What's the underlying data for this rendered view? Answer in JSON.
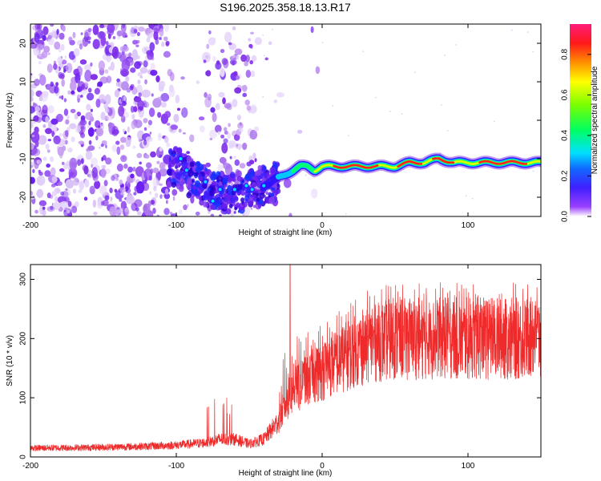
{
  "figure": {
    "title": "S196.2025.358.18.13.R17"
  },
  "colors": {
    "snr_line": "#ee2a2a",
    "scatter_noise": "#8a2be2",
    "frame": "#000000"
  },
  "chart_data": [
    {
      "id": "spectrogram",
      "type": "heatmap",
      "title": "S196.2025.358.18.13.R17",
      "xlabel": "Height of straight line (km)",
      "ylabel": "Frequency (Hz)",
      "xlim": [
        -200,
        150
      ],
      "ylim": [
        -25,
        25
      ],
      "x_ticks": [
        -200,
        -100,
        0,
        100
      ],
      "y_ticks": [
        -20,
        -10,
        0,
        10,
        20
      ],
      "colorbar": {
        "label": "Normalized spectral amplitude",
        "range": [
          0.0,
          0.95
        ],
        "ticks": [
          0.0,
          0.2,
          0.4,
          0.6,
          0.8
        ],
        "tick_labels": [
          "0.0",
          "0.2",
          "0.4",
          "0.6",
          "0.8"
        ],
        "colormap": "rainbow"
      },
      "trace": {
        "description_points_x": [
          -100,
          -90,
          -80,
          -70,
          -60,
          -50,
          -40,
          -35,
          -30,
          -25,
          -20,
          -15,
          -10,
          -5,
          0,
          10,
          20,
          30,
          40,
          50,
          60,
          70,
          80,
          90,
          100,
          110,
          120,
          130,
          140,
          150
        ],
        "description_points_y": [
          -12,
          -15,
          -17,
          -19,
          -19,
          -18,
          -17,
          -16,
          -15,
          -14,
          -13,
          -12,
          -12,
          -13,
          -12,
          -12,
          -12,
          -12,
          -12,
          -12,
          -11,
          -11,
          -10,
          -11,
          -11,
          -11,
          -11,
          -11,
          -11,
          -11
        ]
      }
    },
    {
      "id": "snr",
      "type": "line",
      "xlabel": "Height of straight line (km)",
      "ylabel": "SNR (10 * v/v)",
      "xlim": [
        -200,
        150
      ],
      "ylim": [
        0,
        325
      ],
      "x_ticks": [
        -200,
        -100,
        0,
        100
      ],
      "y_ticks": [
        0,
        100,
        200,
        300
      ],
      "series": [
        {
          "name": "SNR",
          "color": "#ee2a2a",
          "envelope_x": [
            -200,
            -160,
            -120,
            -100,
            -80,
            -70,
            -60,
            -50,
            -40,
            -35,
            -30,
            -25,
            -20,
            -10,
            0,
            10,
            20,
            30,
            40,
            50,
            60,
            80,
            100,
            120,
            150
          ],
          "envelope_base": [
            15,
            16,
            18,
            20,
            24,
            30,
            30,
            22,
            30,
            45,
            60,
            90,
            110,
            130,
            145,
            160,
            175,
            185,
            195,
            200,
            200,
            200,
            200,
            200,
            200
          ],
          "peak_x": -22,
          "peak_value": 325
        }
      ]
    }
  ]
}
